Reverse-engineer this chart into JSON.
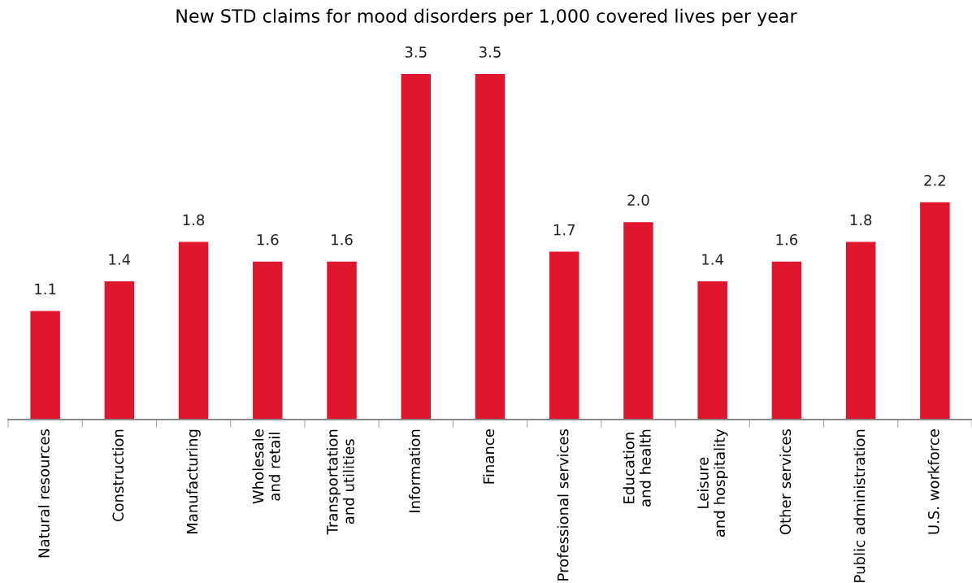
{
  "chart_data": {
    "type": "bar",
    "title": "New STD claims for mood disorders per 1,000 covered lives per year",
    "categories": [
      "Natural resources",
      "Construction",
      "Manufacturing",
      "Wholesale\nand retail",
      "Transportation\nand utilities",
      "Information",
      "Finance",
      "Professional services",
      "Education\nand health",
      "Leisure\nand hospitality",
      "Other services",
      "Public administration",
      "U.S. workforce"
    ],
    "values": [
      1.1,
      1.4,
      1.8,
      1.6,
      1.6,
      3.5,
      3.5,
      1.7,
      2.0,
      1.4,
      1.6,
      1.8,
      2.2
    ],
    "value_labels": [
      "1.1",
      "1.4",
      "1.8",
      "1.6",
      "1.6",
      "3.5",
      "3.5",
      "1.7",
      "2.0",
      "1.4",
      "1.6",
      "1.8",
      "2.2"
    ],
    "color": "#e0162f",
    "grid": false,
    "legend": false
  }
}
